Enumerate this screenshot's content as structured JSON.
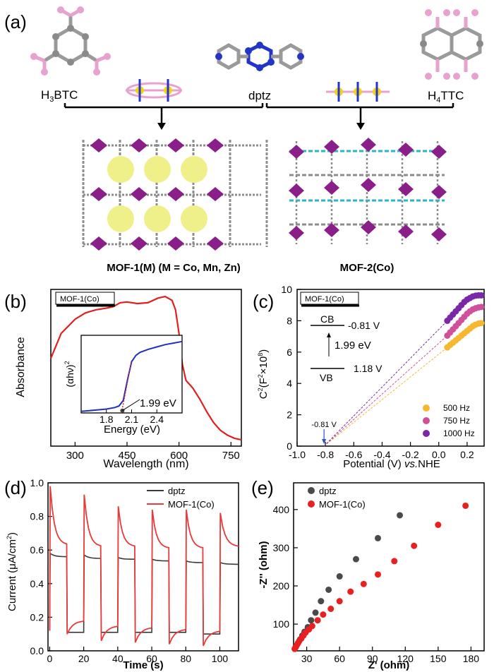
{
  "panel_a": {
    "panel_label": "(a)",
    "labels": {
      "h3btc_main": "H",
      "h3btc_sub": "3",
      "h3btc_rest": "BTC",
      "dptz": "dptz",
      "h4ttc_main": "H",
      "h4ttc_sub": "4",
      "h4ttc_rest": "TTC",
      "mof1_caption": "MOF-1(M) (M = Co, Mn, Zn)",
      "mof2_caption": "MOF-2(Co)"
    },
    "colors": {
      "ligand_gray": "#8a8a8a",
      "oxygen_pink": "#e9a2cf",
      "nitrogen_blue": "#2235c8",
      "metal_purple": "#8a1f8a",
      "cavity_yellow": "#f0f08a",
      "linker_cyan": "#2ab5c9"
    }
  },
  "chart_data": [
    {
      "id": "b",
      "panel_label": "(b)",
      "type": "line",
      "legend_box": "MOF-1(Co)",
      "xlabel": "Wavelength (nm)",
      "ylabel": "Absorbance",
      "xlim": [
        230,
        780
      ],
      "ylim": [
        0,
        1
      ],
      "xticks": [
        300,
        450,
        600,
        750
      ],
      "series": [
        {
          "color": "#e02020",
          "x": [
            230,
            260,
            300,
            330,
            360,
            390,
            410,
            430,
            450,
            480,
            510,
            540,
            560,
            580,
            590,
            600,
            610,
            620,
            640,
            660,
            680,
            700,
            720,
            740,
            760,
            780
          ],
          "y": [
            0.56,
            0.72,
            0.81,
            0.85,
            0.87,
            0.88,
            0.89,
            0.915,
            0.92,
            0.91,
            0.915,
            0.945,
            0.955,
            0.93,
            0.87,
            0.72,
            0.52,
            0.42,
            0.37,
            0.3,
            0.22,
            0.15,
            0.1,
            0.07,
            0.05,
            0.04
          ]
        }
      ],
      "inset": {
        "xlabel": "Energy (eV)",
        "ylabel": "(αhν)",
        "ylabel_sup": "2",
        "xlim": [
          1.5,
          2.7
        ],
        "ylim": [
          0,
          1
        ],
        "xticks": [
          "1.8",
          "2.1",
          "2.4"
        ],
        "xtick_values": [
          1.8,
          2.1,
          2.4
        ],
        "annotation": "1.99 eV",
        "bandgap_x": 1.99,
        "series": [
          {
            "color": "#2030c0",
            "x": [
              1.5,
              1.6,
              1.7,
              1.8,
              1.9,
              1.95,
              2.0,
              2.05,
              2.1,
              2.15,
              2.2,
              2.3,
              2.4,
              2.5,
              2.6,
              2.7
            ],
            "y": [
              0.02,
              0.03,
              0.04,
              0.05,
              0.07,
              0.09,
              0.16,
              0.42,
              0.66,
              0.74,
              0.78,
              0.82,
              0.85,
              0.88,
              0.9,
              0.92
            ]
          }
        ],
        "fit_line": {
          "color": "#e02020",
          "x": [
            1.98,
            2.1
          ],
          "y": [
            0.0,
            0.68
          ]
        }
      }
    },
    {
      "id": "c",
      "panel_label": "(c)",
      "type": "scatter",
      "legend_box": "MOF-1(Co)",
      "xlabel_main": "Potential (V) ",
      "xlabel_italic": "vs.",
      "xlabel_tail": "NHE",
      "ylabel_main": "C",
      "ylabel_sup": "2",
      "ylabel_mid": "(F",
      "ylabel_sup2": "2",
      "ylabel_tail": "×10",
      "ylabel_sup3": "8",
      "ylabel_end": ")",
      "xlim": [
        -1.0,
        0.32
      ],
      "ylim": [
        0,
        10
      ],
      "xticks": [
        "-1.0",
        "-0.8",
        "-0.6",
        "-0.4",
        "-0.2",
        "0.0",
        "0.2"
      ],
      "xtick_values": [
        -1.0,
        -0.8,
        -0.6,
        -0.4,
        -0.2,
        0.0,
        0.2
      ],
      "yticks": [
        "0",
        "2",
        "4",
        "6",
        "8",
        "10"
      ],
      "ytick_values": [
        0,
        2,
        4,
        6,
        8,
        10
      ],
      "intercept_label": "-0.81 V",
      "intercept_x": -0.81,
      "band_diagram": {
        "cb": "CB",
        "vb": "VB",
        "cb_value": "-0.81 V",
        "vb_value": "1.18 V",
        "gap": "1.99 eV"
      },
      "series": [
        {
          "name": "500 Hz",
          "color": "#f5b830",
          "x": [
            0.06,
            0.08,
            0.1,
            0.12,
            0.14,
            0.16,
            0.18,
            0.2,
            0.22,
            0.24,
            0.26,
            0.28,
            0.3
          ],
          "y": [
            6.3,
            6.45,
            6.6,
            6.75,
            6.9,
            7.05,
            7.2,
            7.35,
            7.5,
            7.65,
            7.75,
            7.82,
            7.85
          ]
        },
        {
          "name": "750 Hz",
          "color": "#d0509a",
          "x": [
            0.06,
            0.08,
            0.1,
            0.12,
            0.14,
            0.16,
            0.18,
            0.2,
            0.22,
            0.24,
            0.26,
            0.28,
            0.3
          ],
          "y": [
            7.05,
            7.25,
            7.45,
            7.65,
            7.85,
            8.05,
            8.25,
            8.45,
            8.6,
            8.72,
            8.8,
            8.85,
            8.88
          ]
        },
        {
          "name": "1000 Hz",
          "color": "#7a28a8",
          "x": [
            0.06,
            0.08,
            0.1,
            0.12,
            0.14,
            0.16,
            0.18,
            0.2,
            0.22,
            0.24,
            0.26,
            0.28,
            0.3
          ],
          "y": [
            8.0,
            8.2,
            8.4,
            8.6,
            8.8,
            9.0,
            9.2,
            9.35,
            9.45,
            9.55,
            9.6,
            9.62,
            9.62
          ]
        }
      ]
    },
    {
      "id": "d",
      "panel_label": "(d)",
      "type": "line",
      "xlabel": "Time (s)",
      "ylabel_main": "Current (μA/cm",
      "ylabel_sup": "2",
      "ylabel_end": ")",
      "xlim": [
        -1,
        111
      ],
      "ylim": [
        0,
        1.0
      ],
      "xticks": [
        "0",
        "20",
        "40",
        "60",
        "80",
        "100"
      ],
      "xtick_values": [
        0,
        20,
        40,
        60,
        80,
        100
      ],
      "yticks": [
        "0.0",
        "0.2",
        "0.4",
        "0.6",
        "0.8",
        "1.0"
      ],
      "ytick_values": [
        0,
        0.2,
        0.4,
        0.6,
        0.8,
        1.0
      ],
      "series": [
        {
          "name": "dptz",
          "color": "#3a3a3a",
          "on_intervals": [
            [
              0,
              10
            ],
            [
              20,
              30
            ],
            [
              40,
              50
            ],
            [
              60,
              70
            ],
            [
              80,
              90
            ],
            [
              100,
              111
            ]
          ],
          "on_start": [
            0.58,
            0.57,
            0.555,
            0.545,
            0.535,
            0.525
          ],
          "on_end": [
            0.56,
            0.55,
            0.545,
            0.535,
            0.525,
            0.515
          ],
          "off_level": [
            0.11,
            0.11,
            0.11,
            0.11,
            0.1
          ]
        },
        {
          "name": "MOF-1(Co)",
          "color": "#e83a3a",
          "on_intervals": [
            [
              0,
              10
            ],
            [
              20,
              30
            ],
            [
              40,
              50
            ],
            [
              60,
              70
            ],
            [
              80,
              90
            ],
            [
              100,
              111
            ]
          ],
          "on_start": [
            0.98,
            0.93,
            0.86,
            0.84,
            0.84,
            0.82
          ],
          "on_end": [
            0.63,
            0.62,
            0.62,
            0.61,
            0.61,
            0.62
          ],
          "off_level": [
            0.18,
            0.15,
            0.14,
            0.13,
            0.12
          ],
          "off_dip": [
            0.1,
            0.06,
            0.05,
            0.04,
            0.03
          ]
        }
      ]
    },
    {
      "id": "e",
      "panel_label": "(e)",
      "type": "scatter",
      "xlabel": "Z' (ohm)",
      "ylabel": "-Z'' (ohm)",
      "xlim": [
        18,
        192
      ],
      "ylim": [
        30,
        470
      ],
      "xticks": [
        "30",
        "60",
        "90",
        "120",
        "150",
        "180"
      ],
      "xtick_values": [
        30,
        60,
        90,
        120,
        150,
        180
      ],
      "yticks": [
        "100",
        "200",
        "300",
        "400"
      ],
      "ytick_values": [
        100,
        200,
        300,
        400
      ],
      "series": [
        {
          "name": "dptz",
          "color": "#4a4a4a",
          "x": [
            20,
            22,
            24,
            26,
            28,
            31,
            34,
            38,
            43,
            50,
            60,
            75,
            95,
            115
          ],
          "y": [
            40,
            50,
            60,
            70,
            80,
            92,
            110,
            130,
            160,
            190,
            225,
            270,
            325,
            385
          ]
        },
        {
          "name": "MOF-1(Co)",
          "color": "#e82020",
          "x": [
            19,
            20,
            21,
            22,
            23,
            25,
            27,
            29,
            32,
            35,
            40,
            45,
            52,
            60,
            70,
            82,
            95,
            110,
            128,
            150,
            175
          ],
          "y": [
            35,
            40,
            45,
            50,
            55,
            62,
            70,
            78,
            86,
            95,
            110,
            125,
            140,
            160,
            185,
            205,
            230,
            265,
            305,
            360,
            410
          ]
        }
      ]
    }
  ]
}
